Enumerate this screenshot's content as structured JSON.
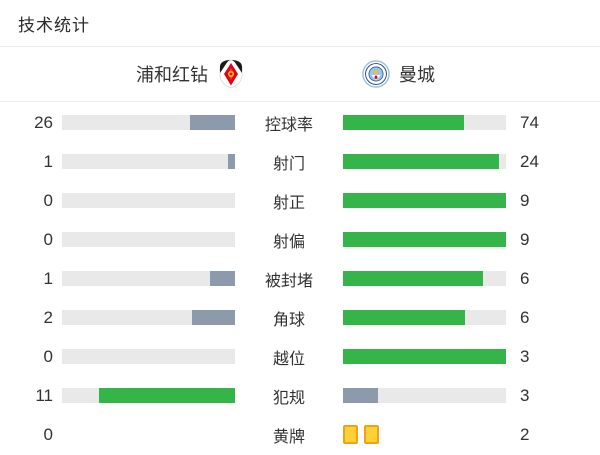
{
  "title": "技术统计",
  "teams": {
    "home": {
      "name": "浦和红钻",
      "logo": "urawa-red-diamonds-logo"
    },
    "away": {
      "name": "曼城",
      "logo": "manchester-city-logo"
    }
  },
  "colors": {
    "leader_fill": "#34b449",
    "trailer_fill": "#8d9aac",
    "track": "#e9e9e9",
    "card_fill": "#fdd035",
    "card_border": "#eba417",
    "divider": "#ececec",
    "text": "#333333"
  },
  "rows": [
    {
      "label": "控球率",
      "home": 26,
      "away": 74
    },
    {
      "label": "射门",
      "home": 1,
      "away": 24
    },
    {
      "label": "射正",
      "home": 0,
      "away": 9
    },
    {
      "label": "射偏",
      "home": 0,
      "away": 9
    },
    {
      "label": "被封堵",
      "home": 1,
      "away": 6
    },
    {
      "label": "角球",
      "home": 2,
      "away": 6
    },
    {
      "label": "越位",
      "home": 0,
      "away": 3
    },
    {
      "label": "犯规",
      "home": 11,
      "away": 3
    },
    {
      "label": "黄牌",
      "home": 0,
      "away": 2,
      "cards": true
    }
  ],
  "chart_data": {
    "type": "bar",
    "title": "技术统计",
    "legend_position": "top",
    "categories": [
      "控球率",
      "射门",
      "射正",
      "射偏",
      "被封堵",
      "角球",
      "越位",
      "犯规",
      "黄牌"
    ],
    "series": [
      {
        "name": "浦和红钻",
        "values": [
          26,
          1,
          0,
          0,
          1,
          2,
          0,
          11,
          0
        ]
      },
      {
        "name": "曼城",
        "values": [
          74,
          24,
          9,
          9,
          6,
          6,
          3,
          3,
          2
        ]
      }
    ],
    "notes": "paired horizontal bars; each pair filled proportionally to value/(home+away); leading side green, trailing side gray; yellow-card row drawn as card icons"
  }
}
